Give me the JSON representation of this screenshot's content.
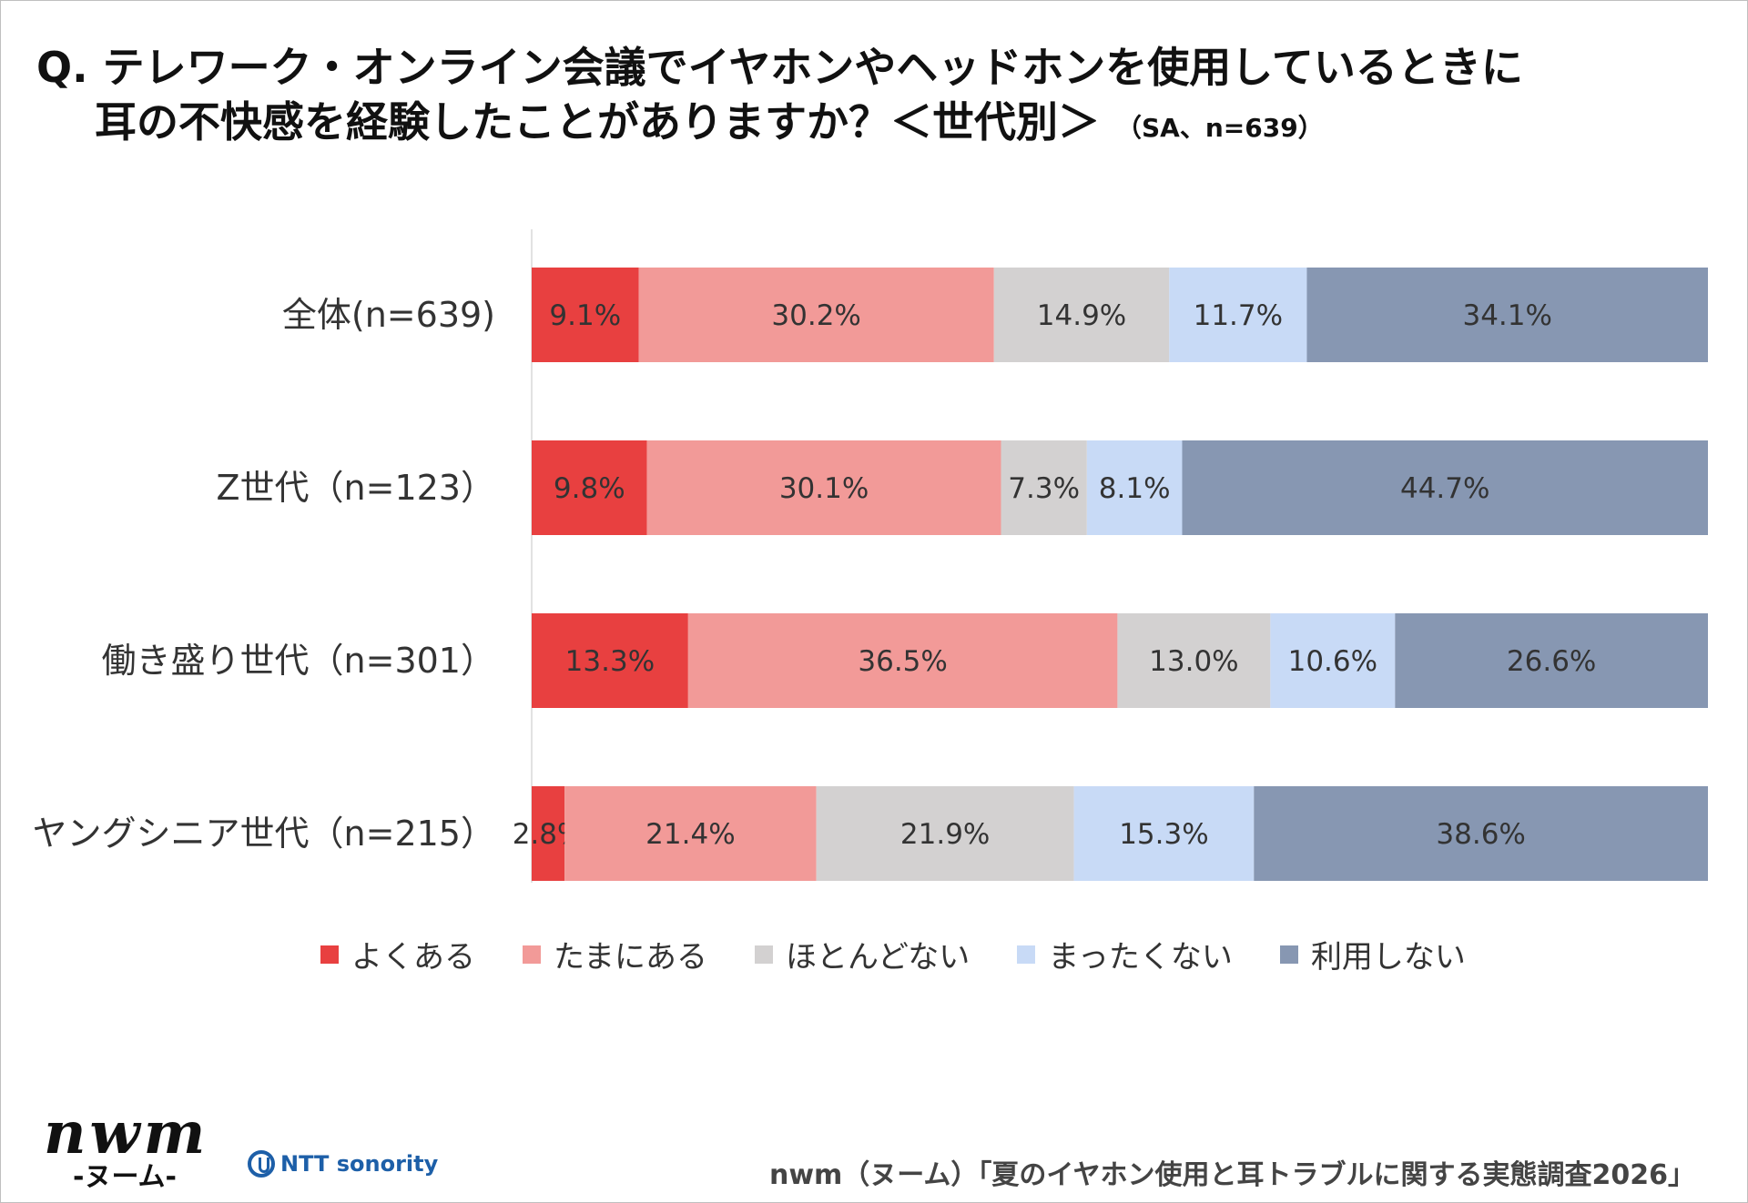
{
  "title": {
    "line1": "Q. テレワーク・オンライン会議でイヤホンやヘッドホンを使用しているときに",
    "line2": "耳の不快感を経験したことがありますか？＜世代別＞",
    "sub": "（SA、n=639）"
  },
  "chart_data": {
    "type": "bar",
    "orientation": "horizontal",
    "stacked": true,
    "xlim": [
      0,
      100
    ],
    "grid": false,
    "legend_position": "bottom",
    "categories": [
      "全体(n=639)",
      "Z世代（n=123）",
      "働き盛り世代（n=301）",
      "ヤングシニア世代（n=215）"
    ],
    "series": [
      {
        "name": "よくある",
        "color": "#e84040",
        "values": [
          9.1,
          9.8,
          13.3,
          2.8
        ]
      },
      {
        "name": "たまにある",
        "color": "#f29a98",
        "values": [
          30.2,
          30.1,
          36.5,
          21.4
        ]
      },
      {
        "name": "ほとんどない",
        "color": "#d3d1d1",
        "values": [
          14.9,
          7.3,
          13.0,
          21.9
        ]
      },
      {
        "name": "まったくない",
        "color": "#c8daf6",
        "values": [
          11.7,
          8.1,
          10.6,
          15.3
        ]
      },
      {
        "name": "利用しない",
        "color": "#8797b2",
        "values": [
          34.1,
          44.7,
          26.6,
          38.6
        ]
      }
    ]
  },
  "logos": {
    "nwm": "nwm",
    "nwm_sub": "-ヌーム-",
    "ntt": "NTT sonority"
  },
  "source": "nwm（ヌーム）「夏のイヤホン使用と耳トラブルに関する実態調査2026」"
}
